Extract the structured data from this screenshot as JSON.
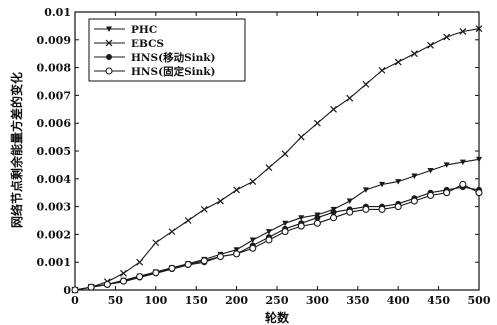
{
  "chart_data": {
    "type": "line",
    "title": "",
    "xlabel": "轮数",
    "ylabel": "网络节点剩余能量方差的变化",
    "xlim": [
      0,
      500
    ],
    "ylim": [
      0,
      0.01
    ],
    "xticks": [
      0,
      50,
      100,
      150,
      200,
      250,
      300,
      350,
      400,
      450,
      500
    ],
    "yticks": [
      0,
      0.001,
      0.002,
      0.003,
      0.004,
      0.005,
      0.006,
      0.007,
      0.008,
      0.009,
      0.01
    ],
    "xtick_labels": [
      "0",
      "50",
      "100",
      "150",
      "200",
      "250",
      "300",
      "350",
      "400",
      "450",
      "500"
    ],
    "ytick_labels": [
      "0",
      "0.001",
      "0.002",
      "0.003",
      "0.004",
      "0.005",
      "0.006",
      "0.007",
      "0.008",
      "0.009",
      "0.01"
    ],
    "grid": false,
    "legend_position": "top-left",
    "x": [
      0,
      20,
      40,
      60,
      80,
      100,
      120,
      140,
      160,
      180,
      200,
      220,
      240,
      260,
      280,
      300,
      320,
      340,
      360,
      380,
      400,
      420,
      440,
      460,
      480,
      500
    ],
    "series": [
      {
        "name": "PHC",
        "marker": "triangle-down",
        "color": "#1a1a1a",
        "values": [
          0,
          0.0001,
          0.0002,
          0.00035,
          0.0005,
          0.00065,
          0.0008,
          0.00095,
          0.0011,
          0.00128,
          0.00145,
          0.0018,
          0.0021,
          0.0024,
          0.0026,
          0.0027,
          0.0029,
          0.0032,
          0.0036,
          0.0038,
          0.0039,
          0.0041,
          0.0043,
          0.0045,
          0.0046,
          0.0047
        ]
      },
      {
        "name": "EBCS",
        "marker": "x",
        "color": "#1a1a1a",
        "values": [
          0,
          0.0001,
          0.0003,
          0.0006,
          0.001,
          0.0017,
          0.0021,
          0.0025,
          0.0029,
          0.0032,
          0.0036,
          0.0039,
          0.0044,
          0.0049,
          0.0055,
          0.006,
          0.0065,
          0.0069,
          0.0074,
          0.0079,
          0.0082,
          0.0085,
          0.0088,
          0.0091,
          0.0093,
          0.0094
        ]
      },
      {
        "name": "HNS(移动Sink)",
        "marker": "circle-filled",
        "color": "#1a1a1a",
        "values": [
          0,
          0.0001,
          0.0002,
          0.0003,
          0.00045,
          0.0006,
          0.00075,
          0.0009,
          0.001,
          0.0012,
          0.0013,
          0.0016,
          0.0019,
          0.0022,
          0.0024,
          0.0026,
          0.0028,
          0.0029,
          0.003,
          0.003,
          0.0031,
          0.0033,
          0.0035,
          0.0036,
          0.0037,
          0.0036
        ]
      },
      {
        "name": "HNS(固定Sink)",
        "marker": "circle-open",
        "color": "#1a1a1a",
        "values": [
          0,
          0.0001,
          0.0002,
          0.00032,
          0.00048,
          0.00062,
          0.00078,
          0.00092,
          0.00105,
          0.0012,
          0.0013,
          0.0015,
          0.0018,
          0.0021,
          0.0023,
          0.0024,
          0.0026,
          0.0028,
          0.0029,
          0.0029,
          0.003,
          0.0032,
          0.0034,
          0.0035,
          0.0038,
          0.0035
        ]
      }
    ]
  }
}
